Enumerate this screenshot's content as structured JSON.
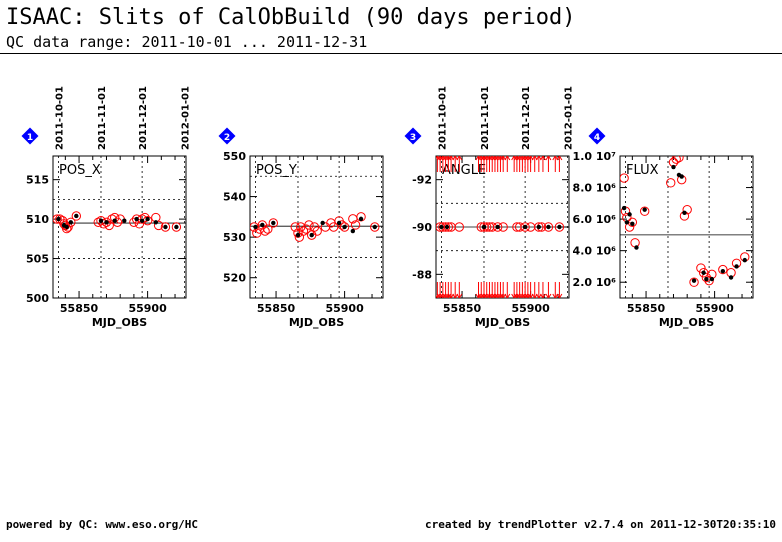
{
  "header": {
    "title": "ISAAC: Slits of CalObBuild (90 days period)",
    "subtitle": "QC data range: 2011-10-01 ... 2011-12-31"
  },
  "footer": {
    "left": "powered by QC: www.eso.org/HC",
    "right": "created by trendPlotter v2.7.4 on 2011-12-30T20:35:10"
  },
  "colors": {
    "marker_open": "#ff0000",
    "marker_filled": "#000000",
    "badge": "#0000ff",
    "frame": "#000000"
  },
  "date_ticks": [
    {
      "label": "2011-10-01",
      "mjd": 55835
    },
    {
      "label": "2011-11-01",
      "mjd": 55866
    },
    {
      "label": "2011-12-01",
      "mjd": 55896
    },
    {
      "label": "2012-01-01",
      "mjd": 55927
    }
  ],
  "chart_data": [
    {
      "type": "scatter",
      "badge": "1",
      "label": "POS_X",
      "xlabel": "MJD_OBS",
      "xlim": [
        55831,
        55928
      ],
      "ylim": [
        500,
        518
      ],
      "xticks": [
        55850,
        55900
      ],
      "yticks": [
        500,
        505,
        510,
        515
      ],
      "ytick_labels": [
        "500",
        "505",
        "510",
        "515"
      ],
      "ref_line": 509.5,
      "dotted_h": [
        505,
        512.5
      ],
      "show_top_dates": true,
      "open_points": [
        [
          55834,
          510
        ],
        [
          55836,
          510
        ],
        [
          55838,
          509.8
        ],
        [
          55839,
          509.4
        ],
        [
          55840,
          509.2
        ],
        [
          55841,
          508.8
        ],
        [
          55842,
          509
        ],
        [
          55844,
          509.6
        ],
        [
          55848,
          510.4
        ],
        [
          55864,
          509.6
        ],
        [
          55866,
          509.8
        ],
        [
          55868,
          509.4
        ],
        [
          55870,
          509.6
        ],
        [
          55872,
          509.2
        ],
        [
          55874,
          510
        ],
        [
          55876,
          510.2
        ],
        [
          55878,
          509.6
        ],
        [
          55880,
          510
        ],
        [
          55890,
          509.6
        ],
        [
          55892,
          510
        ],
        [
          55894,
          509.4
        ],
        [
          55896,
          510
        ],
        [
          55898,
          510.2
        ],
        [
          55900,
          509.8
        ],
        [
          55906,
          510.2
        ],
        [
          55908,
          509.2
        ],
        [
          55913,
          509
        ],
        [
          55921,
          509
        ]
      ],
      "filled_points": [
        [
          55835,
          510
        ],
        [
          55839,
          509.2
        ],
        [
          55841,
          509
        ],
        [
          55844,
          509.6
        ],
        [
          55848,
          510.4
        ],
        [
          55866,
          509.8
        ],
        [
          55870,
          509.6
        ],
        [
          55876,
          509.8
        ],
        [
          55883,
          509.8
        ],
        [
          55892,
          510
        ],
        [
          55896,
          509.8
        ],
        [
          55900,
          510
        ],
        [
          55906,
          509.6
        ],
        [
          55913,
          509
        ],
        [
          55921,
          509
        ]
      ]
    },
    {
      "type": "scatter",
      "badge": "2",
      "label": "POS_Y",
      "xlabel": "MJD_OBS",
      "xlim": [
        55831,
        55928
      ],
      "ylim": [
        515,
        550
      ],
      "xticks": [
        55850,
        55900
      ],
      "yticks": [
        520,
        530,
        540,
        550
      ],
      "ytick_labels": [
        "520",
        "530",
        "540",
        "550"
      ],
      "ref_line": 532.7,
      "dotted_h": [
        525,
        545
      ],
      "show_top_dates": false,
      "open_points": [
        [
          55834,
          532.5
        ],
        [
          55836,
          531
        ],
        [
          55838,
          532
        ],
        [
          55840,
          533
        ],
        [
          55842,
          531.5
        ],
        [
          55844,
          532
        ],
        [
          55848,
          533.5
        ],
        [
          55864,
          532.5
        ],
        [
          55866,
          531
        ],
        [
          55867,
          530
        ],
        [
          55868,
          532.5
        ],
        [
          55870,
          531.5
        ],
        [
          55872,
          532
        ],
        [
          55874,
          533
        ],
        [
          55876,
          530.5
        ],
        [
          55878,
          532.5
        ],
        [
          55880,
          531.5
        ],
        [
          55886,
          532.5
        ],
        [
          55890,
          533.5
        ],
        [
          55892,
          532.5
        ],
        [
          55896,
          534
        ],
        [
          55898,
          533
        ],
        [
          55900,
          532.5
        ],
        [
          55906,
          534.5
        ],
        [
          55908,
          533
        ],
        [
          55912,
          535
        ],
        [
          55922,
          532.5
        ]
      ],
      "filled_points": [
        [
          55835,
          532.5
        ],
        [
          55840,
          533
        ],
        [
          55848,
          533.5
        ],
        [
          55866,
          530.5
        ],
        [
          55876,
          530.5
        ],
        [
          55884,
          533.5
        ],
        [
          55896,
          533.5
        ],
        [
          55900,
          532.5
        ],
        [
          55906,
          531.5
        ],
        [
          55912,
          534.5
        ],
        [
          55922,
          532.5
        ]
      ]
    },
    {
      "type": "scatter",
      "badge": "3",
      "label": "ANGLE",
      "xlabel": "MJD_OBS",
      "xlim": [
        55831,
        55928
      ],
      "ylim": [
        -93,
        -87
      ],
      "yreverse": true,
      "xticks": [
        55850,
        55900
      ],
      "yticks": [
        -92,
        -90,
        -88
      ],
      "ytick_labels": [
        "-92",
        "-90",
        "-88"
      ],
      "ref_line": -90,
      "dotted_h": [
        -91,
        -89
      ],
      "show_top_dates": true,
      "open_points": [
        [
          55834,
          -90
        ],
        [
          55836,
          -90
        ],
        [
          55838,
          -90
        ],
        [
          55840,
          -90
        ],
        [
          55842,
          -90
        ],
        [
          55848,
          -90
        ],
        [
          55864,
          -90
        ],
        [
          55866,
          -90
        ],
        [
          55868,
          -90
        ],
        [
          55870,
          -90
        ],
        [
          55872,
          -90
        ],
        [
          55876,
          -90
        ],
        [
          55880,
          -90
        ],
        [
          55890,
          -90
        ],
        [
          55892,
          -90
        ],
        [
          55896,
          -90
        ],
        [
          55900,
          -90
        ],
        [
          55906,
          -90
        ],
        [
          55908,
          -90
        ],
        [
          55913,
          -90
        ],
        [
          55921,
          -90
        ]
      ],
      "filled_points": [
        [
          55835,
          -90
        ],
        [
          55839,
          -90
        ],
        [
          55866,
          -90
        ],
        [
          55876,
          -90
        ],
        [
          55896,
          -90
        ],
        [
          55906,
          -90
        ],
        [
          55913,
          -90
        ],
        [
          55921,
          -90
        ]
      ],
      "offscale_x": [
        55832,
        55834,
        55836,
        55838,
        55840,
        55842,
        55845,
        55848,
        55862,
        55864,
        55866,
        55868,
        55870,
        55872,
        55874,
        55876,
        55878,
        55880,
        55883,
        55888,
        55890,
        55892,
        55894,
        55896,
        55898,
        55900,
        55903,
        55906,
        55909,
        55913,
        55918,
        55921
      ]
    },
    {
      "type": "scatter",
      "badge": "4",
      "label": "FLUX",
      "xlabel": "MJD_OBS",
      "xlim": [
        55831,
        55928
      ],
      "ylim": [
        1000000,
        10000000
      ],
      "xticks": [
        55850,
        55900
      ],
      "yticks": [
        2000000,
        4000000,
        6000000,
        8000000,
        10000000
      ],
      "ytick_labels": [
        "2.0 10⁶",
        "4.0 10⁶",
        "6.0 10⁶",
        "8.0 10⁶",
        "1.0 10⁷"
      ],
      "ref_line": 5000000,
      "dotted_h": [],
      "show_top_dates": false,
      "open_points": [
        [
          55834,
          8600000
        ],
        [
          55835,
          6500000
        ],
        [
          55836,
          6100000
        ],
        [
          55838,
          5500000
        ],
        [
          55840,
          5800000
        ],
        [
          55842,
          4500000
        ],
        [
          55849,
          6500000
        ],
        [
          55868,
          8300000
        ],
        [
          55870,
          9600000
        ],
        [
          55872,
          9800000
        ],
        [
          55874,
          9900000
        ],
        [
          55876,
          8500000
        ],
        [
          55878,
          6200000
        ],
        [
          55880,
          6600000
        ],
        [
          55885,
          2000000
        ],
        [
          55890,
          2900000
        ],
        [
          55892,
          2600000
        ],
        [
          55894,
          2300000
        ],
        [
          55896,
          2100000
        ],
        [
          55898,
          2500000
        ],
        [
          55906,
          2800000
        ],
        [
          55912,
          2600000
        ],
        [
          55916,
          3200000
        ],
        [
          55922,
          3600000
        ]
      ],
      "filled_points": [
        [
          55834,
          6700000
        ],
        [
          55836,
          5800000
        ],
        [
          55838,
          6300000
        ],
        [
          55840,
          5700000
        ],
        [
          55843,
          4200000
        ],
        [
          55849,
          6600000
        ],
        [
          55870,
          9300000
        ],
        [
          55874,
          8800000
        ],
        [
          55876,
          8700000
        ],
        [
          55878,
          6400000
        ],
        [
          55885,
          2100000
        ],
        [
          55892,
          2600000
        ],
        [
          55894,
          2200000
        ],
        [
          55898,
          2200000
        ],
        [
          55906,
          2700000
        ],
        [
          55912,
          2300000
        ],
        [
          55916,
          3000000
        ],
        [
          55922,
          3400000
        ]
      ]
    }
  ]
}
